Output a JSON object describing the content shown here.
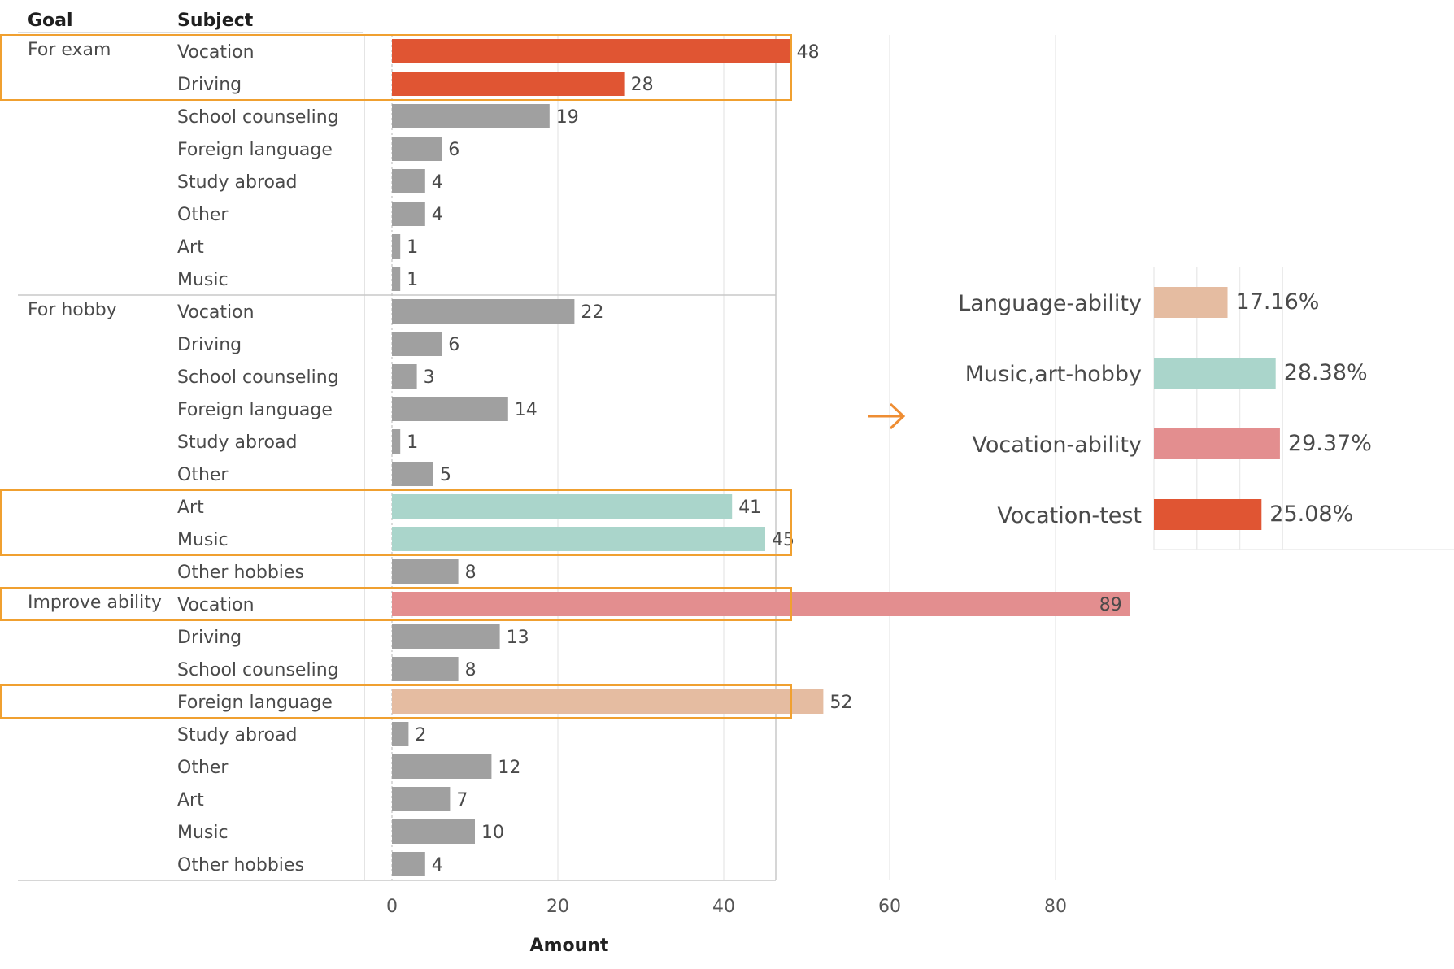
{
  "chart_data": [
    {
      "type": "bar",
      "orientation": "horizontal",
      "xlabel": "Amount",
      "xlim": [
        0,
        90
      ],
      "xticks": [
        0,
        20,
        40,
        60,
        80
      ],
      "headers": {
        "goal": "Goal",
        "subject": "Subject"
      },
      "grid": true,
      "groups": [
        {
          "goal": "For exam",
          "rows": [
            {
              "subject": "Vocation",
              "value": 48,
              "color": "#e05533",
              "highlight": true
            },
            {
              "subject": "Driving",
              "value": 28,
              "color": "#e05533",
              "highlight": true
            },
            {
              "subject": "School counseling",
              "value": 19,
              "color": "#a0a0a0"
            },
            {
              "subject": "Foreign language",
              "value": 6,
              "color": "#a0a0a0"
            },
            {
              "subject": "Study abroad",
              "value": 4,
              "color": "#a0a0a0"
            },
            {
              "subject": "Other",
              "value": 4,
              "color": "#a0a0a0"
            },
            {
              "subject": "Art",
              "value": 1,
              "color": "#a0a0a0"
            },
            {
              "subject": "Music",
              "value": 1,
              "color": "#a0a0a0"
            }
          ]
        },
        {
          "goal": "For hobby",
          "rows": [
            {
              "subject": "Vocation",
              "value": 22,
              "color": "#a0a0a0"
            },
            {
              "subject": "Driving",
              "value": 6,
              "color": "#a0a0a0"
            },
            {
              "subject": "School counseling",
              "value": 3,
              "color": "#a0a0a0"
            },
            {
              "subject": "Foreign language",
              "value": 14,
              "color": "#a0a0a0"
            },
            {
              "subject": "Study abroad",
              "value": 1,
              "color": "#a0a0a0"
            },
            {
              "subject": "Other",
              "value": 5,
              "color": "#a0a0a0"
            },
            {
              "subject": "Art",
              "value": 41,
              "color": "#aad5cb",
              "highlight": true
            },
            {
              "subject": "Music",
              "value": 45,
              "color": "#aad5cb",
              "highlight": true
            },
            {
              "subject": "Other hobbies",
              "value": 8,
              "color": "#a0a0a0"
            }
          ]
        },
        {
          "goal": "Improve ability",
          "rows": [
            {
              "subject": "Vocation",
              "value": 89,
              "color": "#e38e8f",
              "highlight": true,
              "label_inside": true
            },
            {
              "subject": "Driving",
              "value": 13,
              "color": "#a0a0a0"
            },
            {
              "subject": "School counseling",
              "value": 8,
              "color": "#a0a0a0"
            },
            {
              "subject": "Foreign language",
              "value": 52,
              "color": "#e5bca1",
              "highlight": true
            },
            {
              "subject": "Study abroad",
              "value": 2,
              "color": "#a0a0a0"
            },
            {
              "subject": "Other",
              "value": 12,
              "color": "#a0a0a0"
            },
            {
              "subject": "Art",
              "value": 7,
              "color": "#a0a0a0"
            },
            {
              "subject": "Music",
              "value": 10,
              "color": "#a0a0a0"
            },
            {
              "subject": "Other hobbies",
              "value": 4,
              "color": "#a0a0a0"
            }
          ]
        }
      ]
    },
    {
      "type": "bar",
      "orientation": "horizontal",
      "categories": [
        "Language-ability",
        "Music,art-hobby",
        "Vocation-ability",
        "Vocation-test"
      ],
      "values": [
        17.16,
        28.38,
        29.37,
        25.08
      ],
      "value_labels": [
        "17.16%",
        "28.38%",
        "29.37%",
        "25.08%"
      ],
      "colors": [
        "#e5bca1",
        "#aad5cb",
        "#e38e8f",
        "#e05533"
      ],
      "xlim": [
        0,
        32
      ],
      "grid": true
    }
  ],
  "colors": {
    "highlight_box": "#f0a030",
    "arrow": "#ee8d33",
    "grid": "#ebebeb"
  },
  "arrow_icon": "right-arrow-icon"
}
